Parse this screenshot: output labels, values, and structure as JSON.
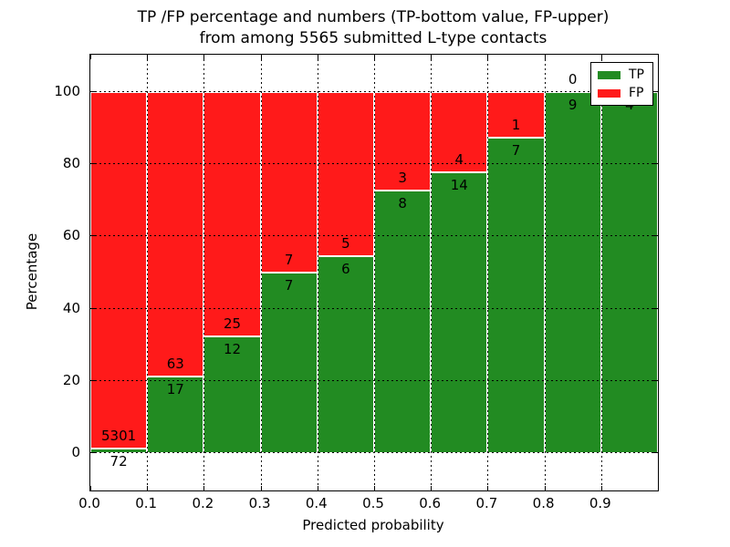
{
  "figure": {
    "title_line1": "TP /FP percentage and numbers (TP-bottom value, FP-upper)",
    "title_line2": "from among 5565 submitted L-type contacts"
  },
  "chart_data": {
    "type": "bar",
    "variant": "stacked-normalized-percent",
    "title": "TP /FP percentage and numbers (TP-bottom value, FP-upper) from among 5565 submitted L-type contacts",
    "xlabel": "Predicted probability",
    "ylabel": "Percentage",
    "total_contacts": 5565,
    "bins_start": [
      0.0,
      0.1,
      0.2,
      0.3,
      0.4,
      0.5,
      0.6,
      0.7,
      0.8,
      0.9
    ],
    "bin_width": 0.1,
    "xtick_labels": [
      "0.0",
      "0.1",
      "0.2",
      "0.3",
      "0.4",
      "0.5",
      "0.6",
      "0.7",
      "0.8",
      "0.9"
    ],
    "yticks": [
      0,
      20,
      40,
      60,
      80,
      100
    ],
    "xlim": [
      0.0,
      1.0
    ],
    "ylim": [
      -10.4,
      110.4
    ],
    "grid": true,
    "grid_style": "dotted",
    "series": [
      {
        "name": "TP",
        "color": "#228B22",
        "values": [
          72,
          17,
          12,
          7,
          6,
          8,
          14,
          7,
          9,
          4
        ]
      },
      {
        "name": "FP",
        "color": "#FF1A1A",
        "values": [
          5301,
          63,
          25,
          7,
          5,
          3,
          4,
          1,
          0,
          0
        ]
      }
    ],
    "tp_percent_of_bin": [
      1.34,
      21.25,
      32.43,
      50.0,
      54.55,
      72.73,
      77.78,
      87.5,
      100.0,
      100.0
    ],
    "legend": {
      "position": "upper right",
      "entries": [
        "TP",
        "FP"
      ]
    }
  },
  "colors": {
    "tp_green": "#228B22",
    "fp_red": "#FF1A1A",
    "grid": "#000000",
    "background": "#FFFFFF",
    "bar_edge": "#FFFFFF"
  }
}
